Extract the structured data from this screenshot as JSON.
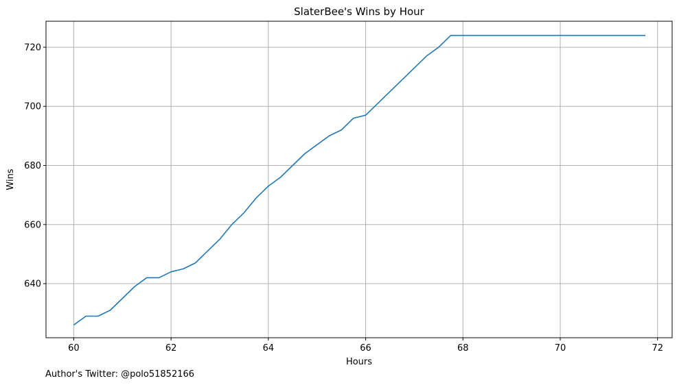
{
  "chart_data": {
    "type": "line",
    "title": "SlaterBee's Wins by Hour",
    "xlabel": "Hours",
    "ylabel": "Wins",
    "xlim": [
      59.43,
      72.3
    ],
    "ylim": [
      621.7,
      728.8
    ],
    "xticks": [
      60,
      62,
      64,
      66,
      68,
      70,
      72
    ],
    "yticks": [
      640,
      660,
      680,
      700,
      720
    ],
    "grid": true,
    "series": [
      {
        "color": "#1f77b4",
        "x": [
          60,
          60.25,
          60.5,
          60.75,
          61,
          61.25,
          61.5,
          61.75,
          62,
          62.25,
          62.5,
          62.75,
          63,
          63.25,
          63.5,
          63.75,
          64,
          64.25,
          64.5,
          64.75,
          65,
          65.25,
          65.5,
          65.75,
          66,
          66.25,
          66.5,
          66.75,
          67,
          67.25,
          67.5,
          67.75,
          68,
          68.25,
          68.5,
          68.75,
          69,
          69.25,
          69.5,
          69.75,
          70,
          70.25,
          70.5,
          70.75,
          71,
          71.25,
          71.5,
          71.75
        ],
        "y": [
          626,
          629,
          629,
          631,
          635,
          639,
          642,
          642,
          644,
          645,
          647,
          651,
          655,
          660,
          664,
          669,
          673,
          676,
          680,
          684,
          687,
          690,
          692,
          696,
          697,
          701,
          705,
          709,
          713,
          717,
          720,
          724,
          724,
          724,
          724,
          724,
          724,
          724,
          724,
          724,
          724,
          724,
          724,
          724,
          724,
          724,
          724,
          724
        ]
      }
    ]
  },
  "footnote": "Author's Twitter: @polo51852166"
}
